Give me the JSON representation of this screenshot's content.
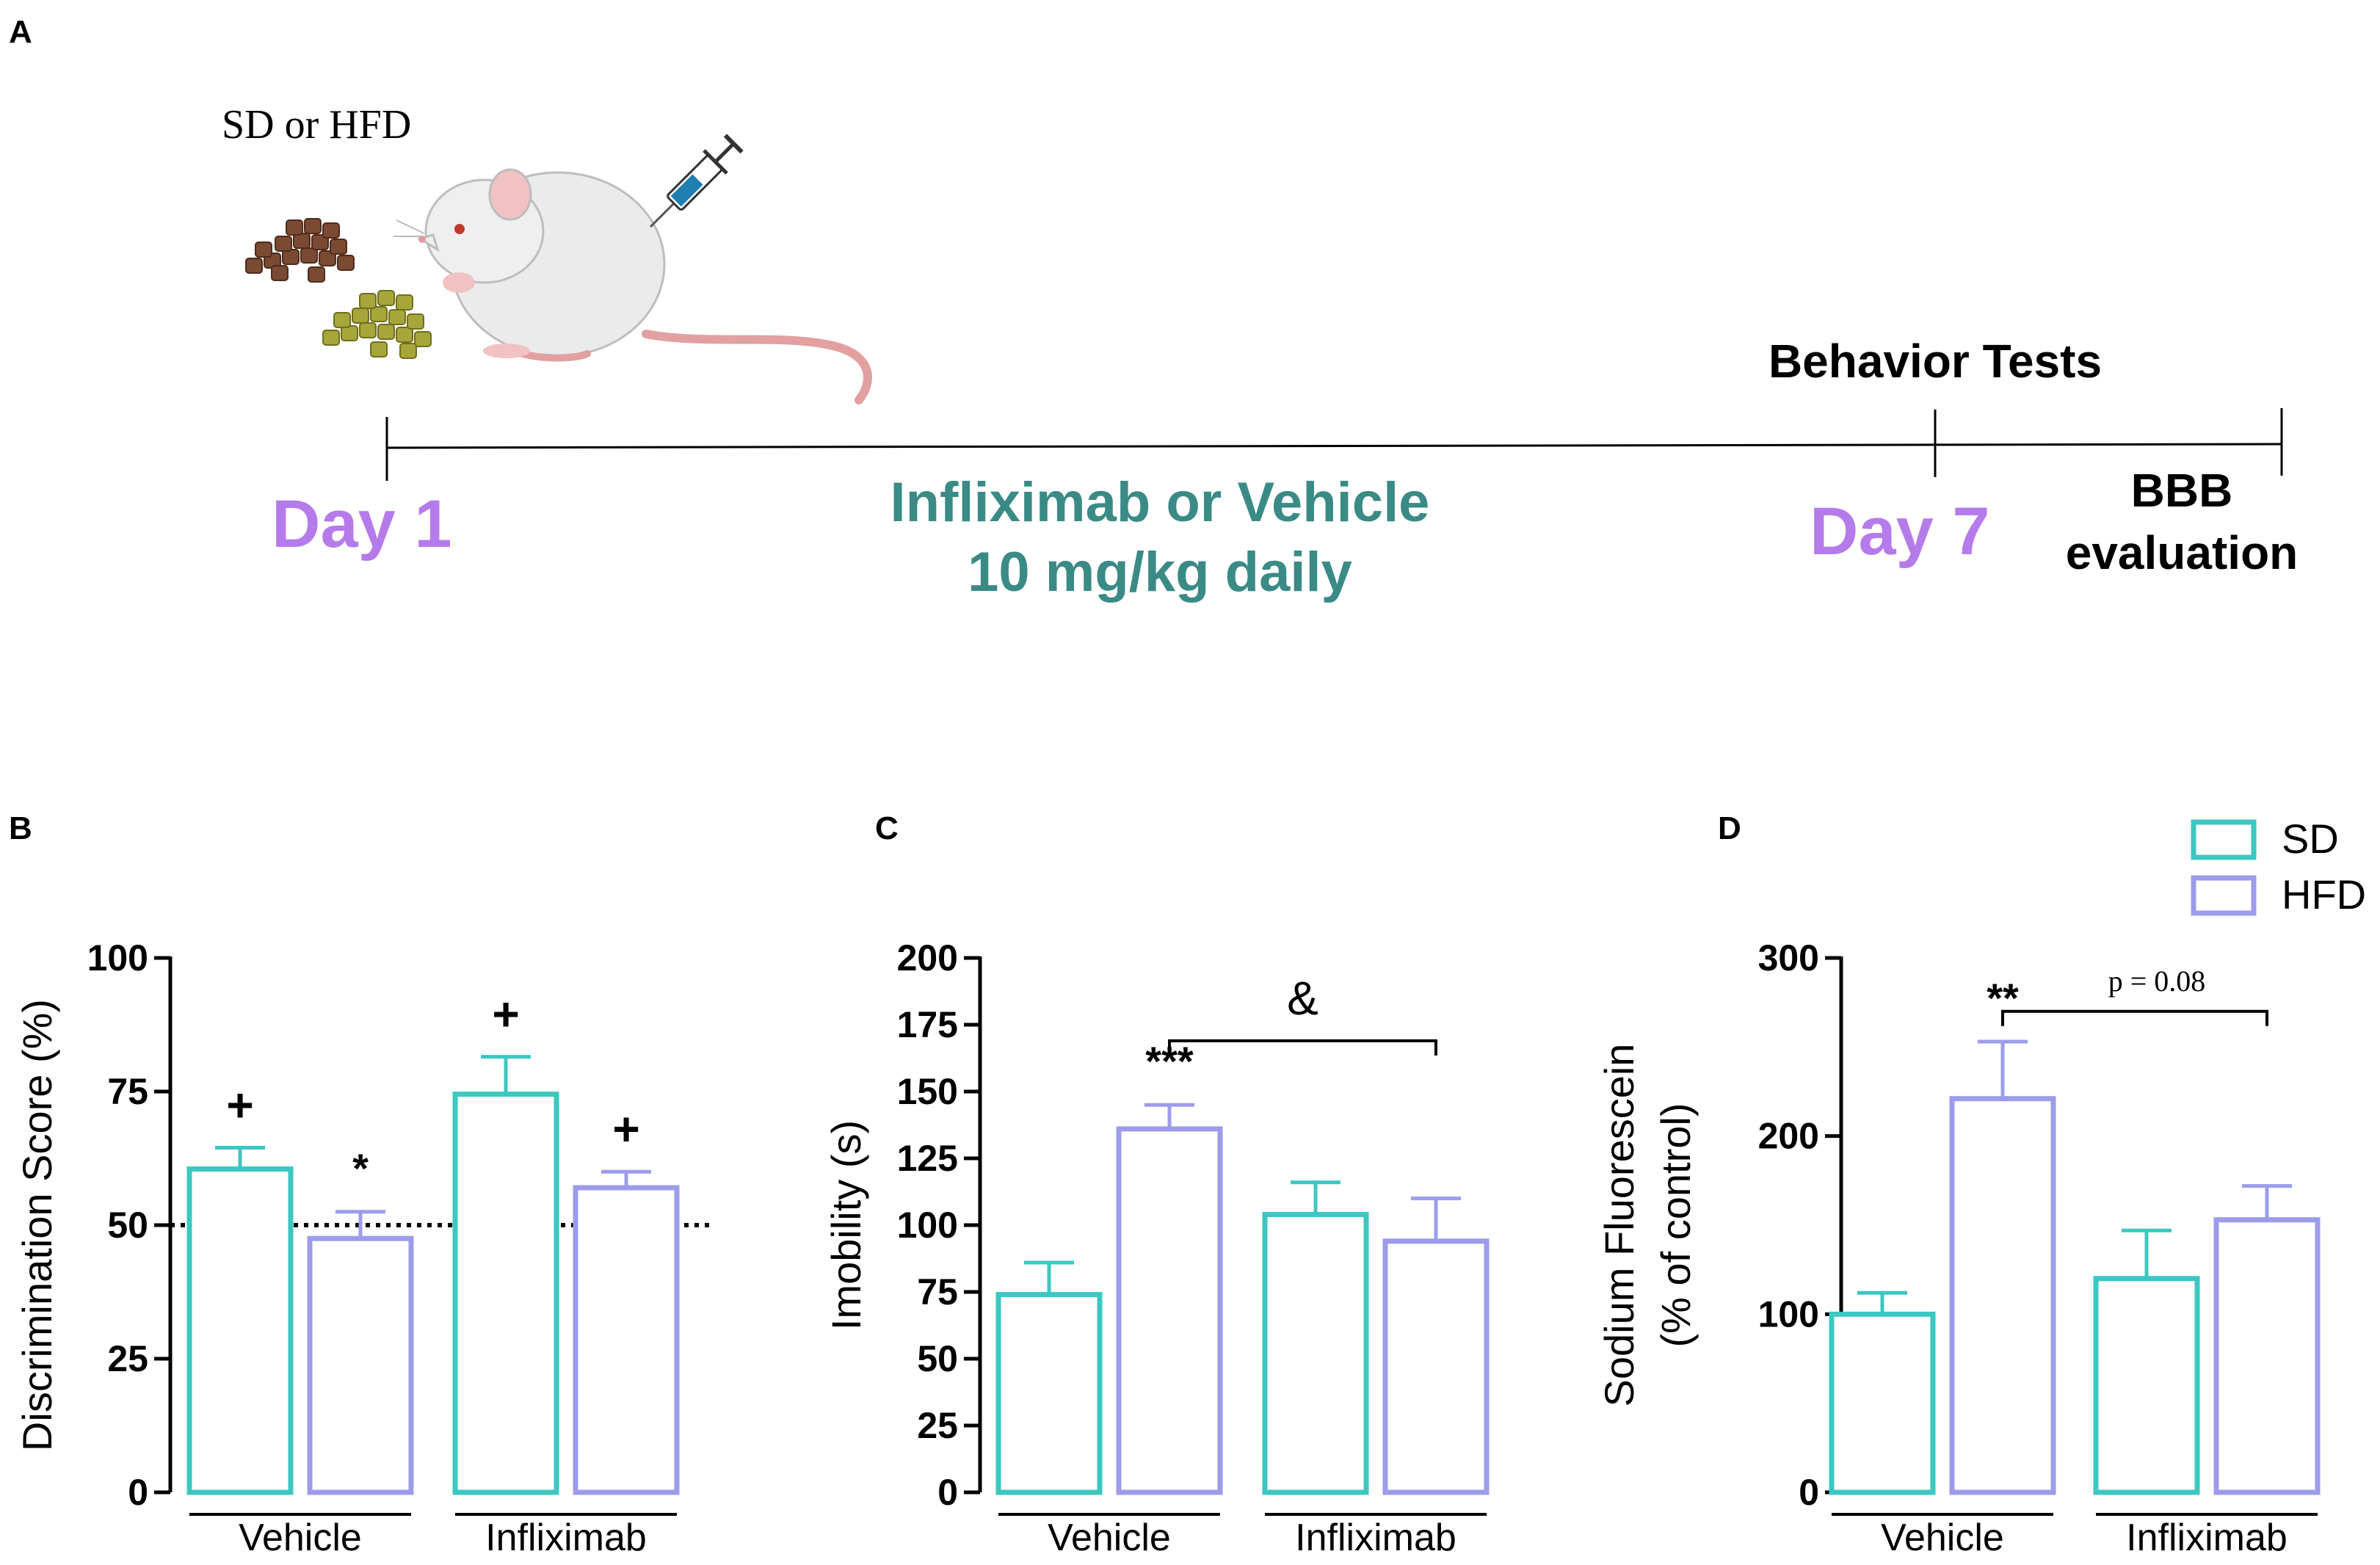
{
  "colors": {
    "sd": "#3CC7C2",
    "hfd": "#9C9CEB",
    "day": "#B57BEA",
    "treatment": "#3A8A86",
    "ink": "#000000"
  },
  "panel_a": {
    "letter": "A",
    "diet_label": "SD or HFD",
    "day1": "Day 1",
    "day7": "Day 7",
    "treatment_line1": "Infliximab or Vehicle",
    "treatment_line2": "10 mg/kg daily",
    "behavior": "Behavior Tests",
    "bbb_line1": "BBB",
    "bbb_line2": "evaluation",
    "icons": [
      "mouse-icon",
      "syringe-icon",
      "dark-pellets-icon",
      "green-pellets-icon"
    ]
  },
  "legend": {
    "sd": "SD",
    "hfd": "HFD"
  },
  "chart_data": [
    {
      "id": "B",
      "letter": "B",
      "type": "bar",
      "ylabel_lines": [
        "Discrimination Score (%)"
      ],
      "ylim": [
        0,
        100
      ],
      "yticks": [
        0,
        25,
        50,
        75,
        100
      ],
      "groups": [
        "Vehicle",
        "Infliximab"
      ],
      "series": [
        {
          "name": "SD",
          "values": [
            60.5,
            74.5
          ],
          "errors": [
            4,
            7
          ]
        },
        {
          "name": "HFD",
          "values": [
            47.5,
            57
          ],
          "errors": [
            5,
            3
          ]
        }
      ],
      "reference_line": 50,
      "annotations": [
        {
          "group": 0,
          "series": 0,
          "text": "+"
        },
        {
          "group": 0,
          "series": 1,
          "text": "*"
        },
        {
          "group": 1,
          "series": 0,
          "text": "+"
        },
        {
          "group": 1,
          "series": 1,
          "text": "+"
        }
      ],
      "comparisons": []
    },
    {
      "id": "C",
      "letter": "C",
      "type": "bar",
      "ylabel_lines": [
        "Imobility (s)"
      ],
      "ylim": [
        0,
        200
      ],
      "yticks": [
        0,
        25,
        50,
        75,
        100,
        125,
        150,
        175,
        200
      ],
      "groups": [
        "Vehicle",
        "Infliximab"
      ],
      "series": [
        {
          "name": "SD",
          "values": [
            74,
            104
          ],
          "errors": [
            12,
            12
          ]
        },
        {
          "name": "HFD",
          "values": [
            136,
            94
          ],
          "errors": [
            9,
            16
          ]
        }
      ],
      "annotations": [
        {
          "group": 0,
          "series": 1,
          "text": "***"
        }
      ],
      "comparisons": [
        {
          "from": [
            0,
            1
          ],
          "to": [
            1,
            1
          ],
          "text": "&",
          "y": 169
        }
      ]
    },
    {
      "id": "D",
      "letter": "D",
      "type": "bar",
      "ylabel_lines": [
        "Sodium Fluorescein",
        "(% of control)"
      ],
      "ylim": [
        0,
        300
      ],
      "yticks": [
        0,
        100,
        200,
        300
      ],
      "groups": [
        "Vehicle",
        "Infliximab"
      ],
      "series": [
        {
          "name": "SD",
          "values": [
            100,
            120
          ],
          "errors": [
            12,
            27
          ]
        },
        {
          "name": "HFD",
          "values": [
            221,
            153
          ],
          "errors": [
            32,
            19
          ]
        }
      ],
      "annotations": [
        {
          "group": 0,
          "series": 1,
          "text": "**"
        }
      ],
      "comparisons": [
        {
          "from": [
            0,
            1
          ],
          "to": [
            1,
            1
          ],
          "text": "p = 0.08",
          "y": 270
        }
      ]
    }
  ]
}
